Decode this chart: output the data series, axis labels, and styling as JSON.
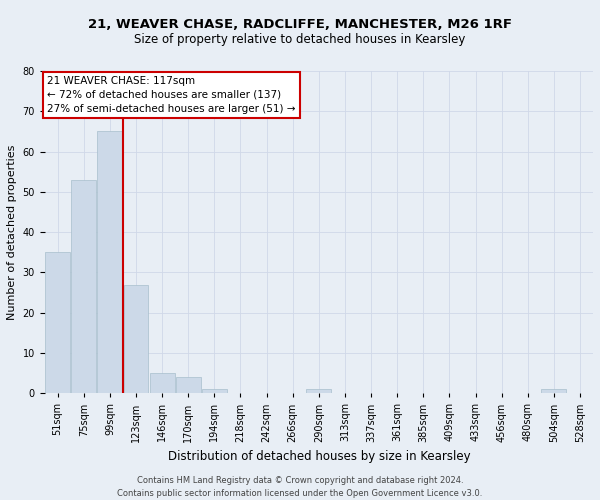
{
  "title1": "21, WEAVER CHASE, RADCLIFFE, MANCHESTER, M26 1RF",
  "title2": "Size of property relative to detached houses in Kearsley",
  "xlabel": "Distribution of detached houses by size in Kearsley",
  "ylabel": "Number of detached properties",
  "footnote1": "Contains HM Land Registry data © Crown copyright and database right 2024.",
  "footnote2": "Contains public sector information licensed under the Open Government Licence v3.0.",
  "bin_labels": [
    "51sqm",
    "75sqm",
    "99sqm",
    "123sqm",
    "146sqm",
    "170sqm",
    "194sqm",
    "218sqm",
    "242sqm",
    "266sqm",
    "290sqm",
    "313sqm",
    "337sqm",
    "361sqm",
    "385sqm",
    "409sqm",
    "433sqm",
    "456sqm",
    "480sqm",
    "504sqm",
    "528sqm"
  ],
  "bar_values": [
    35,
    53,
    65,
    27,
    5,
    4,
    1,
    0,
    0,
    0,
    1,
    0,
    0,
    0,
    0,
    0,
    0,
    0,
    0,
    1,
    0
  ],
  "bar_color": "#ccd9e8",
  "bar_edgecolor": "#a8becc",
  "vline_x": 2.5,
  "vline_color": "#cc0000",
  "ylim": [
    0,
    80
  ],
  "yticks": [
    0,
    10,
    20,
    30,
    40,
    50,
    60,
    70,
    80
  ],
  "annotation_text": "21 WEAVER CHASE: 117sqm\n← 72% of detached houses are smaller (137)\n27% of semi-detached houses are larger (51) →",
  "annotation_box_edgecolor": "#cc0000",
  "annotation_box_facecolor": "#ffffff",
  "grid_color": "#d0d8e8",
  "background_color": "#e8eef5",
  "title1_fontsize": 9.5,
  "title2_fontsize": 8.5,
  "ylabel_fontsize": 8,
  "xlabel_fontsize": 8.5,
  "tick_fontsize": 7,
  "annot_fontsize": 7.5,
  "footnote_fontsize": 6
}
